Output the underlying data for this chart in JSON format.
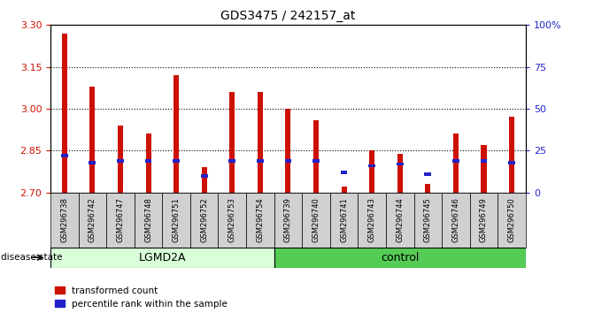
{
  "title": "GDS3475 / 242157_at",
  "samples": [
    "GSM296738",
    "GSM296742",
    "GSM296747",
    "GSM296748",
    "GSM296751",
    "GSM296752",
    "GSM296753",
    "GSM296754",
    "GSM296739",
    "GSM296740",
    "GSM296741",
    "GSM296743",
    "GSM296744",
    "GSM296745",
    "GSM296746",
    "GSM296749",
    "GSM296750"
  ],
  "n_lgmd2a": 8,
  "transformed_count": [
    3.27,
    3.08,
    2.94,
    2.91,
    3.12,
    2.79,
    3.06,
    3.06,
    3.0,
    2.96,
    2.72,
    2.85,
    2.84,
    2.73,
    2.91,
    2.87,
    2.97
  ],
  "percentile_rank": [
    22,
    18,
    19,
    19,
    19,
    10,
    19,
    19,
    19,
    19,
    12,
    16,
    17,
    11,
    19,
    19,
    18
  ],
  "y_min": 2.7,
  "y_max": 3.3,
  "y_ticks_left": [
    2.7,
    2.85,
    3.0,
    3.15,
    3.3
  ],
  "y_ticks_right": [
    0,
    25,
    50,
    75,
    100
  ],
  "bar_color": "#cc1100",
  "blue_color": "#2222cc",
  "lgmd2a_bg": "#d8ffd8",
  "control_bg": "#55cc55",
  "xtick_bg": "#d0d0d0",
  "chart_bg": "#ffffff",
  "group_label_lgmd2a": "LGMD2A",
  "group_label_control": "control",
  "disease_state_label": "disease state",
  "legend_red": "transformed count",
  "legend_blue": "percentile rank within the sample"
}
